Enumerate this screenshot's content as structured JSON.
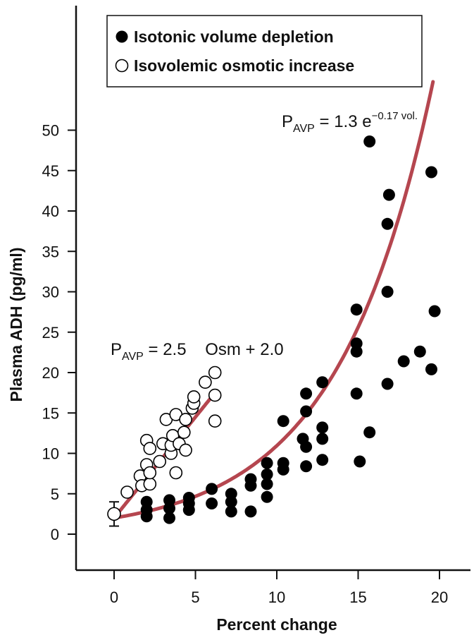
{
  "chart_data": {
    "type": "scatter",
    "xlabel": "Percent change",
    "ylabel": "Plasma ADH (pg/ml)",
    "xlim": [
      -2,
      22
    ],
    "ylim": [
      -5,
      68
    ],
    "x_ticks": [
      0,
      5,
      10,
      15,
      20
    ],
    "y_ticks": [
      0,
      5,
      10,
      15,
      20,
      25,
      30,
      35,
      40,
      45,
      50
    ],
    "grid": false,
    "legend": {
      "position": "top-left",
      "entries": [
        {
          "label": "Isotonic volume depletion",
          "marker": "filled-circle"
        },
        {
          "label": "Isovolemic osmotic increase",
          "marker": "open-circle"
        }
      ]
    },
    "annotations": {
      "volume_eq": {
        "main": "P",
        "sub": "AVP",
        "rest": " = 1.3 e",
        "sup": "−0.17 vol."
      },
      "osmotic_eq": {
        "main": "P",
        "sub": "AVP",
        "rest": " = 2.5    Osm + 2.0"
      }
    },
    "baseline": {
      "x": 0,
      "y": 2.5,
      "error": 1.5
    },
    "curve_color": "#b5464f",
    "series": [
      {
        "name": "Isotonic volume depletion",
        "marker": "filled",
        "points": [
          [
            2,
            2.2
          ],
          [
            2,
            3.0
          ],
          [
            2,
            4.0
          ],
          [
            3.4,
            2.0
          ],
          [
            3.4,
            3.2
          ],
          [
            3.4,
            4.2
          ],
          [
            4.6,
            3.0
          ],
          [
            4.6,
            3.8
          ],
          [
            4.6,
            4.5
          ],
          [
            6,
            3.8
          ],
          [
            6,
            5.6
          ],
          [
            7.2,
            2.8
          ],
          [
            7.2,
            4.0
          ],
          [
            7.2,
            5.0
          ],
          [
            8.4,
            2.8
          ],
          [
            8.4,
            6.0
          ],
          [
            8.4,
            6.8
          ],
          [
            9.4,
            4.6
          ],
          [
            9.4,
            6.2
          ],
          [
            9.4,
            7.4
          ],
          [
            9.4,
            8.8
          ],
          [
            10.4,
            8.0
          ],
          [
            10.4,
            8.8
          ],
          [
            10.4,
            14.0
          ],
          [
            11.6,
            11.8
          ],
          [
            11.8,
            8.4
          ],
          [
            11.8,
            10.8
          ],
          [
            11.8,
            15.2
          ],
          [
            11.8,
            17.4
          ],
          [
            12.8,
            9.2
          ],
          [
            12.8,
            11.8
          ],
          [
            12.8,
            13.2
          ],
          [
            12.8,
            18.8
          ],
          [
            14.9,
            17.4
          ],
          [
            14.9,
            22.6
          ],
          [
            14.9,
            23.6
          ],
          [
            14.9,
            27.8
          ],
          [
            15.1,
            9.0
          ],
          [
            15.7,
            12.6
          ],
          [
            15.7,
            48.6
          ],
          [
            16.8,
            18.6
          ],
          [
            16.8,
            30.0
          ],
          [
            16.8,
            38.4
          ],
          [
            16.9,
            42.0
          ],
          [
            17.8,
            21.4
          ],
          [
            18.8,
            22.6
          ],
          [
            19.5,
            20.4
          ],
          [
            19.5,
            44.8
          ],
          [
            19.7,
            27.6
          ]
        ]
      },
      {
        "name": "Isovolemic osmotic increase",
        "marker": "open",
        "points": [
          [
            0.8,
            5.2
          ],
          [
            1.6,
            7.2
          ],
          [
            1.7,
            6.0
          ],
          [
            2.0,
            11.6
          ],
          [
            2.0,
            8.6
          ],
          [
            2.2,
            6.2
          ],
          [
            2.2,
            7.6
          ],
          [
            2.2,
            10.6
          ],
          [
            2.8,
            9.0
          ],
          [
            3.0,
            11.2
          ],
          [
            3.2,
            14.2
          ],
          [
            3.5,
            10.0
          ],
          [
            3.5,
            11.0
          ],
          [
            3.6,
            12.2
          ],
          [
            3.8,
            7.6
          ],
          [
            3.8,
            14.8
          ],
          [
            4.0,
            11.2
          ],
          [
            4.3,
            12.6
          ],
          [
            4.4,
            14.2
          ],
          [
            4.4,
            10.4
          ],
          [
            4.8,
            15.6
          ],
          [
            4.9,
            16.2
          ],
          [
            4.9,
            17.0
          ],
          [
            5.6,
            18.8
          ],
          [
            6.2,
            20.0
          ],
          [
            6.2,
            17.2
          ],
          [
            6.2,
            14.0
          ]
        ]
      }
    ],
    "fits": [
      {
        "type": "exponential",
        "a": 1.3,
        "b": 0.17,
        "x_range": [
          0,
          19.6
        ]
      },
      {
        "type": "linear",
        "slope": 2.5,
        "intercept": 2.0,
        "x_range": [
          0,
          6.1
        ]
      }
    ]
  }
}
